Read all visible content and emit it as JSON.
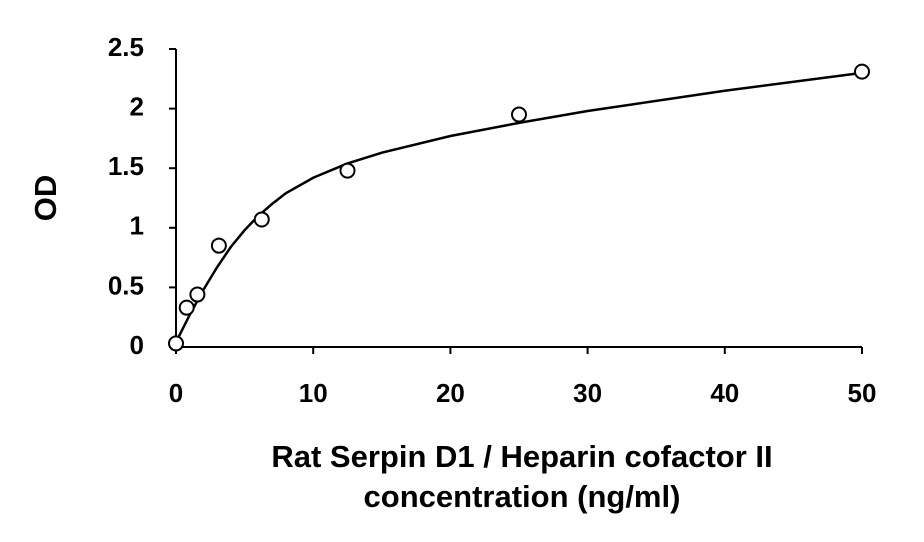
{
  "chart_data": {
    "type": "scatter",
    "ylabel": "OD",
    "xlabel": [
      "Rat Serpin D1 / Heparin cofactor II",
      "concentration (ng/ml)"
    ],
    "x": [
      0,
      0.78,
      1.56,
      3.125,
      6.25,
      12.5,
      25,
      50
    ],
    "values": [
      0.03,
      0.33,
      0.44,
      0.85,
      1.07,
      1.48,
      1.95,
      2.31
    ],
    "color": "#000000",
    "curve": {
      "x": [
        0,
        1,
        2,
        3,
        4,
        5,
        6,
        7,
        8,
        10,
        12.5,
        15,
        20,
        25,
        30,
        40,
        50
      ],
      "values": [
        0.04,
        0.27,
        0.48,
        0.67,
        0.84,
        0.98,
        1.1,
        1.2,
        1.29,
        1.42,
        1.54,
        1.63,
        1.77,
        1.88,
        1.98,
        2.15,
        2.3
      ]
    },
    "xlim": [
      0,
      50
    ],
    "xticks": [
      0,
      10,
      20,
      30,
      40,
      50
    ],
    "ylim": [
      0,
      2.5
    ],
    "yticks": [
      0,
      0.5,
      1,
      1.5,
      2,
      2.5
    ]
  }
}
